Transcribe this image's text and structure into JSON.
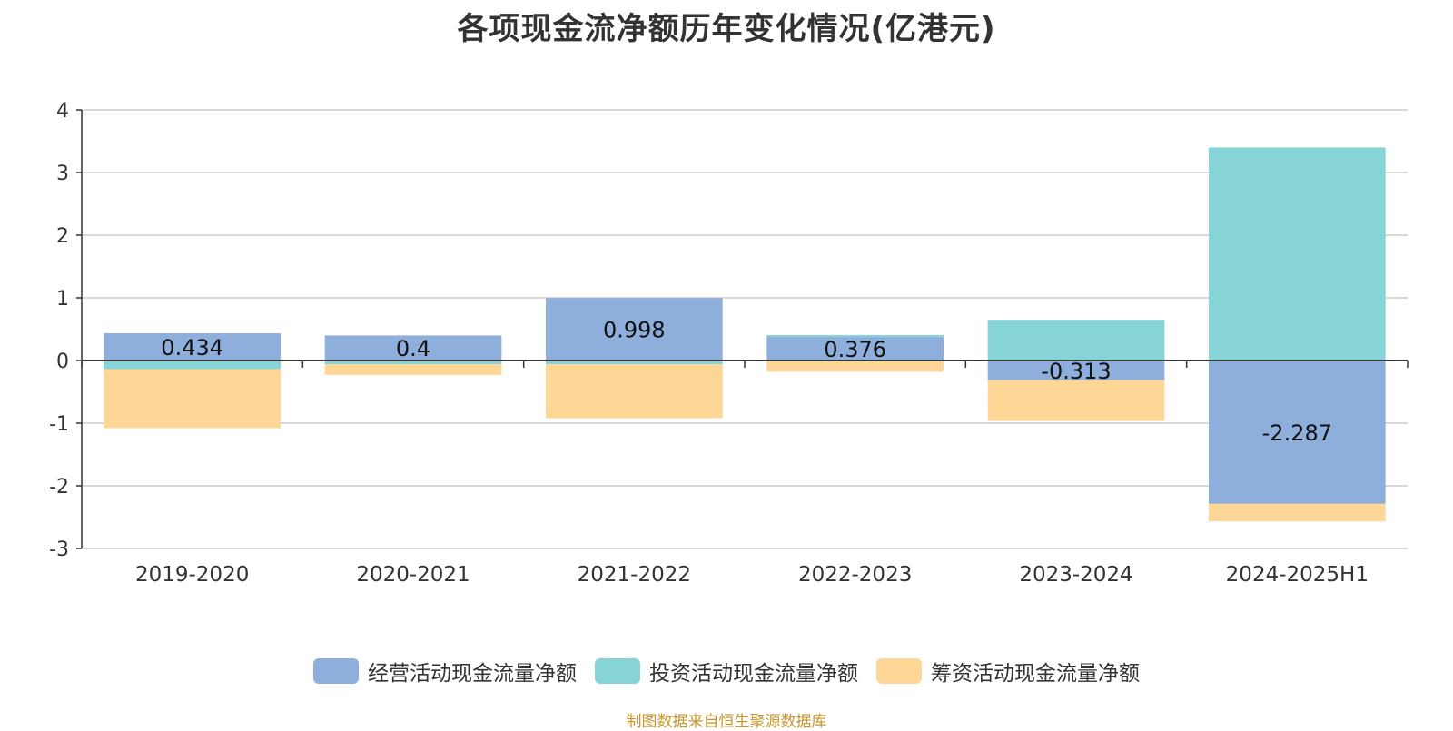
{
  "chart_data": {
    "type": "bar",
    "stacked": true,
    "title": "各项现金流净额历年变化情况(亿港元)",
    "categories": [
      "2019-2020",
      "2020-2021",
      "2021-2022",
      "2022-2023",
      "2023-2024",
      "2024-2025H1"
    ],
    "ylim": [
      -3,
      4
    ],
    "yticks": [
      "4",
      "3",
      "2",
      "1",
      "0",
      "-1",
      "-2",
      "-3"
    ],
    "grid": true,
    "legend_position": "bottom-center",
    "series": [
      {
        "name": "经营活动现金流量净额",
        "color": "#8eaedb",
        "values": [
          0.434,
          0.4,
          0.998,
          0.376,
          -0.313,
          -2.287
        ],
        "labels": [
          "0.434",
          "0.4",
          "0.998",
          "0.376",
          "-0.313",
          "-2.287"
        ]
      },
      {
        "name": "投资活动现金流量净额",
        "color": "#86d4d6",
        "values": [
          -0.14,
          -0.06,
          -0.06,
          0.03,
          0.65,
          3.4
        ]
      },
      {
        "name": "筹资活动现金流量净额",
        "color": "#fed796",
        "values": [
          -0.94,
          -0.17,
          -0.86,
          -0.18,
          -0.65,
          -0.28
        ]
      }
    ]
  },
  "source": "制图数据来自恒生聚源数据库"
}
